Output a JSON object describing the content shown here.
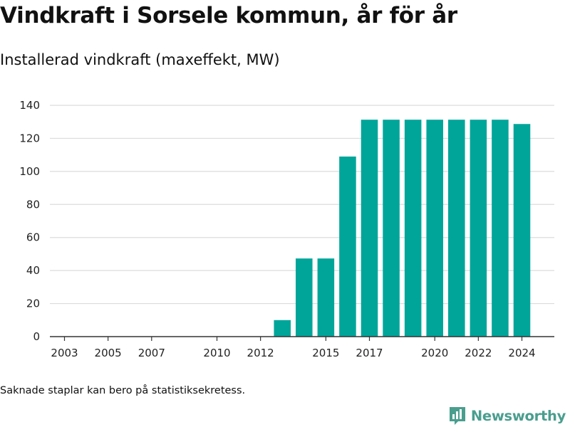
{
  "title": "Vindkraft i Sorsele kommun, år för år",
  "subtitle": "Installerad vindkraft (maxeffekt, MW)",
  "footnote": "Saknade staplar kan bero på statistiksekretess.",
  "brand": {
    "name": "Newsworthy",
    "color": "#4a9e8e",
    "icon": "newsworthy-logo-icon"
  },
  "colors": {
    "bar": "#00a59a",
    "grid": "#dcdcdc",
    "axis": "#333333"
  },
  "chart_data": {
    "type": "bar",
    "title": "Vindkraft i Sorsele kommun, år för år",
    "ylabel": "Installerad vindkraft (maxeffekt, MW)",
    "xlabel": "",
    "x": [
      2003,
      2004,
      2005,
      2006,
      2007,
      2008,
      2009,
      2010,
      2011,
      2012,
      2013,
      2014,
      2015,
      2016,
      2017,
      2018,
      2019,
      2020,
      2021,
      2022,
      2023,
      2024
    ],
    "values": [
      0,
      0,
      0,
      0,
      0,
      0,
      0,
      0,
      0,
      0,
      10,
      47.3,
      47.3,
      109,
      131.3,
      131.3,
      131.3,
      131.3,
      131.3,
      131.3,
      131.3,
      128.7
    ],
    "xticks": [
      2003,
      2005,
      2007,
      2010,
      2012,
      2015,
      2017,
      2020,
      2022,
      2024
    ],
    "ylim": [
      0,
      140
    ],
    "yticks": [
      0,
      20,
      40,
      60,
      80,
      100,
      120,
      140
    ],
    "grid": true,
    "legend": "none"
  }
}
